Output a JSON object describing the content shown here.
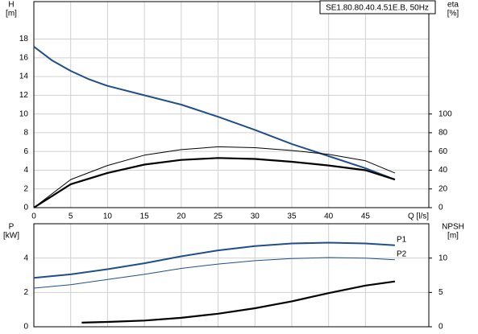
{
  "chart_data": [
    {
      "type": "line",
      "title": "SE1.80.80.40.4.51E.B, 50Hz",
      "ylabel": "H",
      "yunit": "[m]",
      "y2label": "eta",
      "y2unit": "[%]",
      "xlabel": "Q [l/s]",
      "xlim": [
        0,
        53.6
      ],
      "xticks": [
        0,
        5,
        10,
        15,
        20,
        25,
        30,
        35,
        40,
        45
      ],
      "show_xtick_labels": true,
      "ylim": [
        0,
        22
      ],
      "yticks": [
        0,
        2,
        4,
        6,
        8,
        10,
        12,
        14,
        16,
        18
      ],
      "y2lim": [
        0,
        220
      ],
      "y2ticks": [
        0,
        20,
        40,
        60,
        80,
        100
      ],
      "grid": true,
      "series": [
        {
          "color": "#1f4e8c",
          "width": 2,
          "x": [
            0,
            2.5,
            5,
            7.5,
            10,
            15,
            20,
            25,
            30,
            35,
            40,
            45,
            49
          ],
          "values": [
            17.2,
            15.7,
            14.6,
            13.7,
            13.0,
            12.0,
            11.0,
            9.7,
            8.3,
            6.8,
            5.5,
            4.2,
            3.0
          ]
        },
        {
          "color": "#000000",
          "width": 1,
          "axis": "y2",
          "x": [
            0,
            5,
            10,
            15,
            20,
            25,
            30,
            35,
            40,
            45,
            49
          ],
          "values": [
            0,
            30,
            45,
            56,
            62,
            65,
            64,
            61,
            57,
            50,
            37
          ]
        },
        {
          "color": "#000000",
          "width": 2.2,
          "axis": "y2",
          "x": [
            0,
            5,
            10,
            15,
            20,
            25,
            30,
            35,
            40,
            45,
            49
          ],
          "values": [
            0,
            25,
            37,
            46,
            51,
            53,
            52,
            49,
            45,
            40,
            30
          ]
        }
      ]
    },
    {
      "type": "line",
      "ylabel": "P",
      "yunit": "[kW]",
      "y2label": "NPSH",
      "y2unit": "[m]",
      "xlim": [
        0,
        53.6
      ],
      "xticks": [
        0,
        5,
        10,
        15,
        20,
        25,
        30,
        35,
        40,
        45
      ],
      "show_xtick_labels": false,
      "ylim": [
        0,
        6
      ],
      "yticks": [
        0,
        2,
        4
      ],
      "y2lim": [
        0,
        15
      ],
      "y2ticks": [
        0,
        5,
        10
      ],
      "grid": true,
      "series": [
        {
          "name": "P1",
          "color": "#1f4e8c",
          "width": 2,
          "x": [
            0,
            5,
            10,
            15,
            20,
            25,
            30,
            35,
            40,
            45,
            49
          ],
          "values": [
            2.85,
            3.05,
            3.35,
            3.7,
            4.1,
            4.45,
            4.7,
            4.85,
            4.9,
            4.85,
            4.75
          ]
        },
        {
          "name": "P2",
          "color": "#1f4e8c",
          "width": 1,
          "x": [
            0,
            5,
            10,
            15,
            20,
            25,
            30,
            35,
            40,
            45,
            49
          ],
          "values": [
            2.25,
            2.45,
            2.75,
            3.05,
            3.4,
            3.65,
            3.85,
            3.97,
            4.03,
            4.0,
            3.9
          ]
        },
        {
          "color": "#000000",
          "width": 2.2,
          "axis": "y2",
          "x": [
            6.5,
            10,
            15,
            20,
            25,
            30,
            35,
            40,
            45,
            49
          ],
          "values": [
            0.6,
            0.7,
            0.9,
            1.3,
            1.9,
            2.7,
            3.7,
            4.9,
            6.0,
            6.6
          ]
        }
      ]
    }
  ]
}
